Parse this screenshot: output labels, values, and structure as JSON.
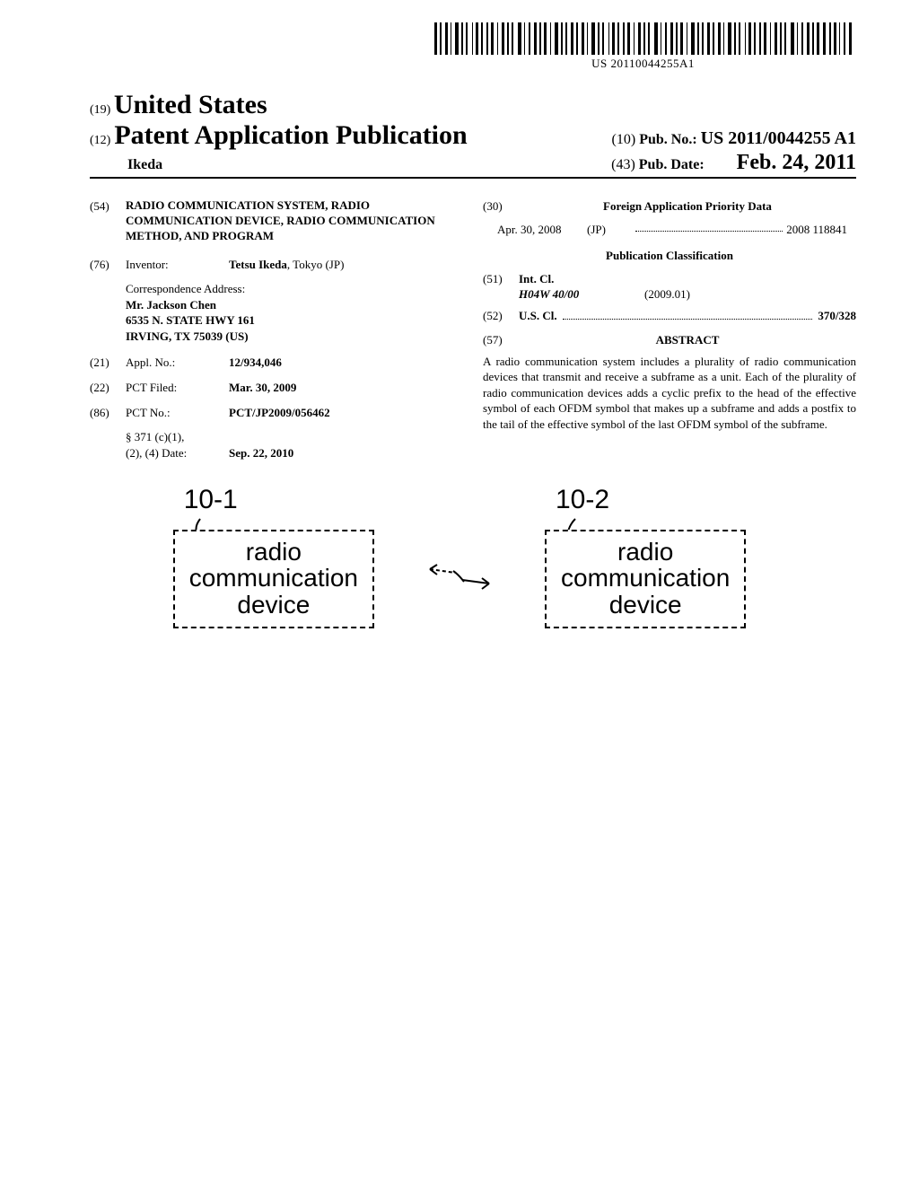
{
  "barcode": {
    "text": "US 20110044255A1"
  },
  "header": {
    "country_prefix": "(19)",
    "country": "United States",
    "pub_prefix": "(12)",
    "pub_title": "Patent Application Publication",
    "pub_no_prefix": "(10)",
    "pub_no_label": "Pub. No.:",
    "pub_no_value": "US 2011/0044255 A1",
    "author": "Ikeda",
    "pub_date_prefix": "(43)",
    "pub_date_label": "Pub. Date:",
    "pub_date_value": "Feb. 24, 2011"
  },
  "left": {
    "title_num": "(54)",
    "title": "RADIO COMMUNICATION SYSTEM, RADIO COMMUNICATION DEVICE, RADIO COMMUNICATION METHOD, AND PROGRAM",
    "inventor_num": "(76)",
    "inventor_label": "Inventor:",
    "inventor_value_bold": "Tetsu Ikeda",
    "inventor_value_rest": ", Tokyo (JP)",
    "correspondence_label": "Correspondence Address:",
    "correspondence_lines": [
      "Mr. Jackson Chen",
      "6535 N. STATE HWY 161",
      "IRVING, TX 75039 (US)"
    ],
    "appl_num": "(21)",
    "appl_label": "Appl. No.:",
    "appl_value": "12/934,046",
    "pct_filed_num": "(22)",
    "pct_filed_label": "PCT Filed:",
    "pct_filed_value": "Mar. 30, 2009",
    "pct_no_num": "(86)",
    "pct_no_label": "PCT No.:",
    "pct_no_value": "PCT/JP2009/056462",
    "s371_label1": "§ 371 (c)(1),",
    "s371_label2": "(2), (4) Date:",
    "s371_value": "Sep. 22, 2010"
  },
  "right": {
    "foreign_num": "(30)",
    "foreign_heading": "Foreign Application Priority Data",
    "foreign_date": "Apr. 30, 2008",
    "foreign_country": "(JP)",
    "foreign_appnum": "2008 118841",
    "pub_class_heading": "Publication Classification",
    "intcl_num": "(51)",
    "intcl_label": "Int. Cl.",
    "intcl_code": "H04W 40/00",
    "intcl_date": "(2009.01)",
    "uscl_num": "(52)",
    "uscl_label": "U.S. Cl.",
    "uscl_value": "370/328",
    "abstract_num": "(57)",
    "abstract_heading": "ABSTRACT",
    "abstract_body": "A radio communication system includes a plurality of radio communication devices that transmit and receive a subframe as a unit. Each of the plurality of radio communication devices adds a cyclic prefix to the head of the effective symbol of each OFDM symbol that makes up a subframe and adds a postfix to the tail of the effective symbol of the last OFDM symbol of the subframe."
  },
  "diagram": {
    "nodes": [
      {
        "id": "10-1",
        "label": "10-1",
        "text": "radio\ncommunication\ndevice"
      },
      {
        "id": "10-2",
        "label": "10-2",
        "text": "radio\ncommunication\ndevice"
      }
    ],
    "box_border": "#000000",
    "box_font_size": 28,
    "label_font_size": 30
  }
}
